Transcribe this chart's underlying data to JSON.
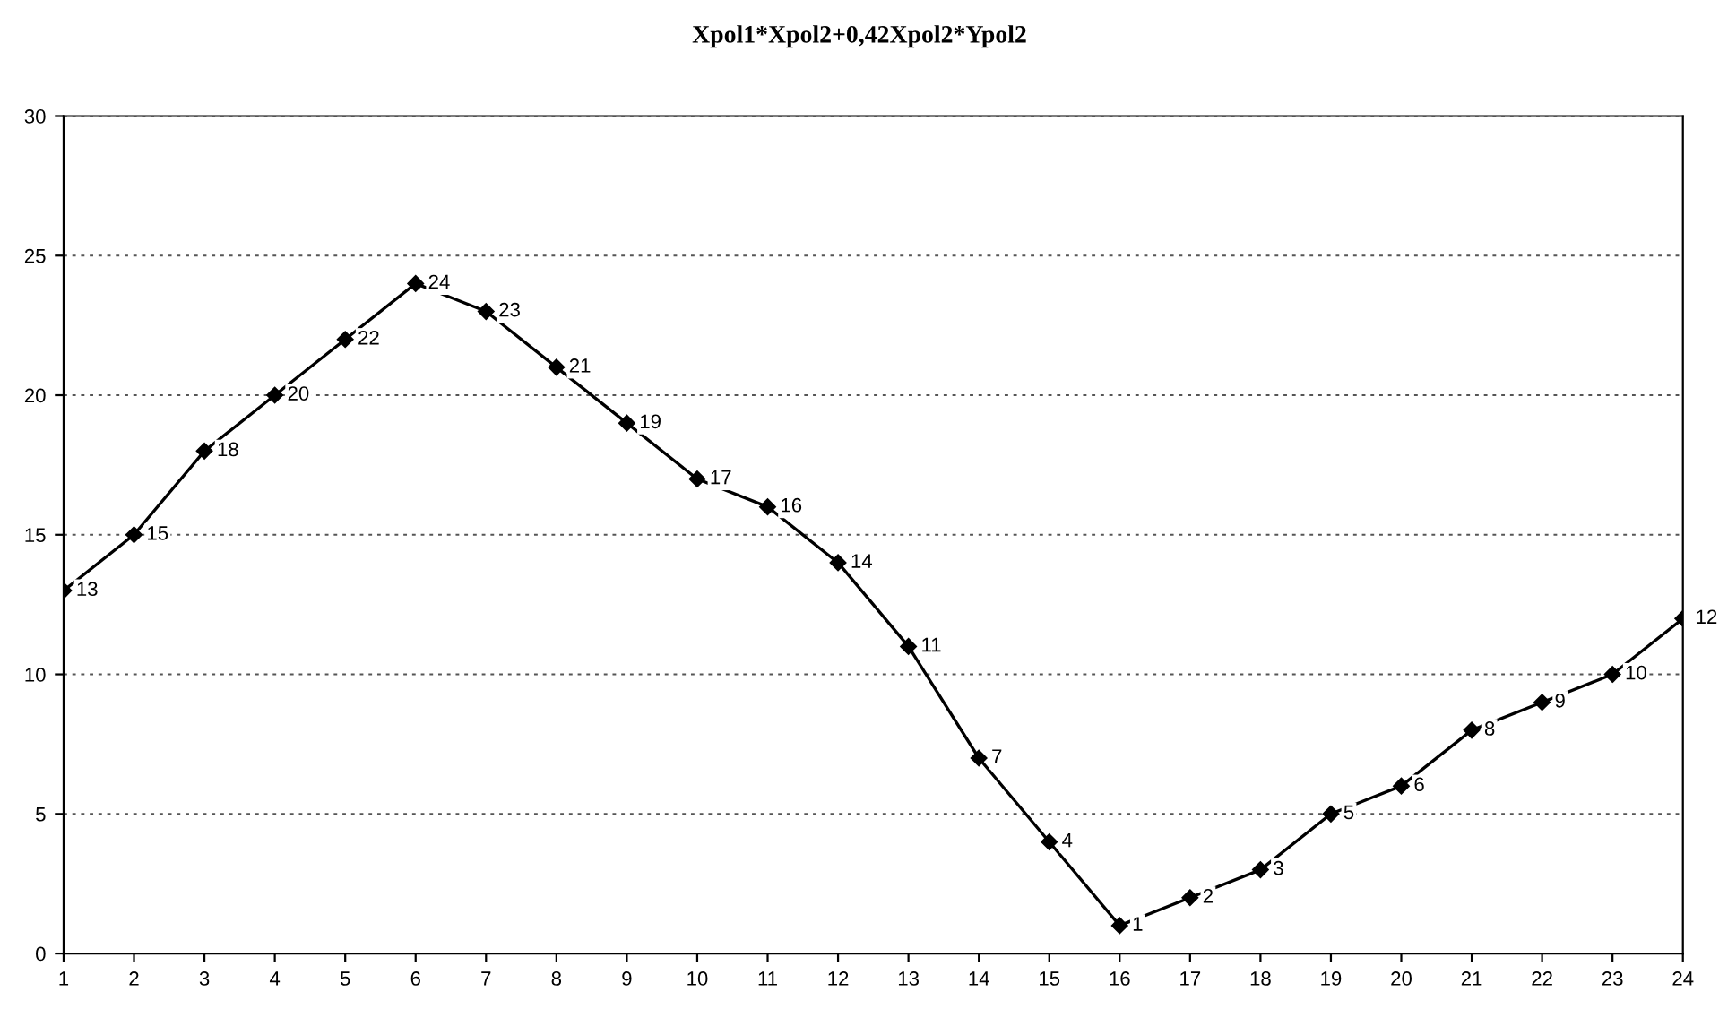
{
  "chart_data": {
    "type": "line",
    "title": "Xpol1*Xpol2+0,42Xpol2*Ypol2",
    "x": [
      1,
      2,
      3,
      4,
      5,
      6,
      7,
      8,
      9,
      10,
      11,
      12,
      13,
      14,
      15,
      16,
      17,
      18,
      19,
      20,
      21,
      22,
      23,
      24
    ],
    "series": [
      {
        "color": "#000000",
        "values": [
          13,
          15,
          18,
          20,
          22,
          24,
          23,
          21,
          19,
          17,
          16,
          14,
          11,
          7,
          4,
          1,
          2,
          3,
          5,
          6,
          8,
          9,
          10,
          12
        ]
      }
    ],
    "xlim": [
      1,
      24
    ],
    "xticks": [
      1,
      2,
      3,
      4,
      5,
      6,
      7,
      8,
      9,
      10,
      11,
      12,
      13,
      14,
      15,
      16,
      17,
      18,
      19,
      20,
      21,
      22,
      23,
      24
    ],
    "ylim": [
      0,
      30
    ],
    "yticks": [
      0,
      5,
      10,
      15,
      20,
      25,
      30
    ],
    "grid": "y",
    "marker": "diamond",
    "line_style": "solid",
    "data_labels": true
  }
}
